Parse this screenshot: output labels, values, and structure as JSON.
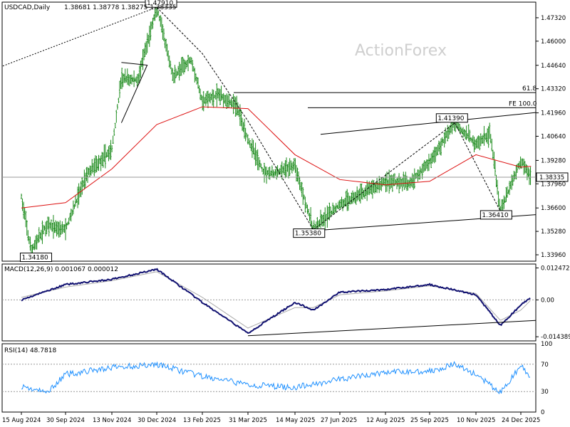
{
  "header": {
    "title": "USDCAD,Daily",
    "ohlc": "1.38681 1.38778 1.38275 1.38335"
  },
  "watermark": "ActionForex",
  "colors": {
    "price_bars": "#1a8a1a",
    "ma": "#dd1111",
    "macd_line": "#101070",
    "signal_line": "#aaaaaa",
    "rsi": "#1e90ff",
    "trendlines": "#000000",
    "dotted_levels": "#999999"
  },
  "chart_data": [
    {
      "type": "bar",
      "title": "USDCAD,Daily",
      "subtitle": "1.38681 1.38778 1.38275 1.38335",
      "x_ticks": [
        "15 Aug 2024",
        "30 Sep 2024",
        "13 Nov 2024",
        "30 Dec 2024",
        "13 Feb 2025",
        "31 Mar 2025",
        "14 May 2025",
        "27 Jun 2025",
        "12 Aug 2025",
        "25 Sep 2025",
        "10 Nov 2025",
        "24 Dec 2025"
      ],
      "y_ticks": [
        "1.47320",
        "1.46000",
        "1.44640",
        "1.43320",
        "1.41960",
        "1.40640",
        "1.39280",
        "1.37960",
        "1.36600",
        "1.35280",
        "1.33960"
      ],
      "ylim": [
        1.336,
        1.482
      ],
      "last_price": 1.38335,
      "last_price_label": "1.38335",
      "series": [
        {
          "kind": "price_path",
          "dates": [
            "15 Aug 2024",
            "25 Aug 2024",
            "10 Sep 2024",
            "30 Sep 2024",
            "20 Oct 2024",
            "13 Nov 2024",
            "23 Nov 2024",
            "10 Dec 2024",
            "30 Dec 2024",
            "15 Jan 2025",
            "2 Feb 2025",
            "13 Feb 2025",
            "2 Mar 2025",
            "20 Mar 2025",
            "31 Mar 2025",
            "14 Apr 2025",
            "24 Apr 2025",
            "14 May 2025",
            "1 Jun 2025",
            "27 Jun 2025",
            "12 Aug 2025",
            "5 Sep 2025",
            "25 Sep 2025",
            "20 Oct 2025",
            "10 Nov 2025",
            "24 Nov 2025",
            "4 Dec 2025",
            "24 Dec 2025",
            "3 Jan 2026"
          ],
          "values": [
            1.372,
            1.3418,
            1.356,
            1.354,
            1.385,
            1.399,
            1.439,
            1.438,
            1.4791,
            1.44,
            1.45,
            1.426,
            1.43,
            1.423,
            1.405,
            1.387,
            1.385,
            1.39,
            1.3538,
            1.368,
            1.381,
            1.38,
            1.392,
            1.4139,
            1.402,
            1.408,
            1.3641,
            1.393,
            1.38335
          ]
        },
        {
          "kind": "moving_average",
          "dates": [
            "15 Aug 2024",
            "30 Sep 2024",
            "13 Nov 2024",
            "30 Dec 2024",
            "13 Feb 2025",
            "31 Mar 2025",
            "14 May 2025",
            "27 Jun 2025",
            "12 Aug 2025",
            "25 Sep 2025",
            "10 Nov 2025",
            "24 Dec 2025",
            "3 Jan 2026"
          ],
          "values": [
            1.366,
            1.369,
            1.388,
            1.413,
            1.423,
            1.422,
            1.396,
            1.382,
            1.379,
            1.381,
            1.396,
            1.389,
            1.3895
          ]
        }
      ],
      "annotations": [
        {
          "label": "1.47910",
          "date": "30 Dec 2024",
          "value": 1.4791
        },
        {
          "label": "1.34180",
          "date": "25 Aug 2024",
          "value": 1.3418
        },
        {
          "label": "1.35380",
          "date": "1 Jun 2025",
          "value": 1.3538
        },
        {
          "label": "1.41390",
          "date": "20 Oct 2025",
          "value": 1.4139
        },
        {
          "label": "1.36410",
          "date": "4 Dec 2025",
          "value": 1.3641
        },
        {
          "label": "61.8",
          "value": 1.431
        },
        {
          "label": "FE 100.0",
          "value": 1.4225
        }
      ]
    },
    {
      "type": "line",
      "title": "MACD(12,26,9) 0.001067 0.000012",
      "y_ticks": [
        "0.012472",
        "0.00",
        "-0.014389"
      ],
      "ylim": [
        -0.016,
        0.014
      ],
      "series": [
        {
          "kind": "macd",
          "dates": [
            "15 Aug 2024",
            "30 Sep 2024",
            "13 Nov 2024",
            "30 Dec 2024",
            "13 Feb 2025",
            "31 Mar 2025",
            "14 May 2025",
            "1 Jun 2025",
            "27 Jun 2025",
            "12 Aug 2025",
            "25 Sep 2025",
            "10 Nov 2025",
            "4 Dec 2025",
            "24 Dec 2025",
            "3 Jan 2026"
          ],
          "values": [
            0.0,
            0.006,
            0.008,
            0.012,
            -0.001,
            -0.013,
            -0.001,
            -0.004,
            0.003,
            0.004,
            0.006,
            0.002,
            -0.01,
            -0.002,
            0.001
          ]
        },
        {
          "kind": "signal",
          "dates": [
            "15 Aug 2024",
            "30 Sep 2024",
            "13 Nov 2024",
            "30 Dec 2024",
            "13 Feb 2025",
            "31 Mar 2025",
            "14 May 2025",
            "1 Jun 2025",
            "27 Jun 2025",
            "12 Aug 2025",
            "25 Sep 2025",
            "10 Nov 2025",
            "4 Dec 2025",
            "24 Dec 2025",
            "3 Jan 2026"
          ],
          "values": [
            0.001,
            0.005,
            0.0075,
            0.011,
            0.001,
            -0.011,
            -0.003,
            -0.003,
            0.002,
            0.0035,
            0.0055,
            0.0025,
            -0.008,
            -0.004,
            0.0
          ]
        }
      ]
    },
    {
      "type": "line",
      "title": "RSI(14) 48.7818",
      "y_ticks": [
        "100",
        "70",
        "30",
        "0"
      ],
      "ylim": [
        0,
        100
      ],
      "series": [
        {
          "kind": "rsi",
          "dates": [
            "15 Aug 2024",
            "10 Sep 2024",
            "30 Sep 2024",
            "13 Nov 2024",
            "30 Dec 2024",
            "13 Feb 2025",
            "31 Mar 2025",
            "14 May 2025",
            "27 Jun 2025",
            "12 Aug 2025",
            "25 Sep 2025",
            "20 Oct 2025",
            "10 Nov 2025",
            "4 Dec 2025",
            "24 Dec 2025",
            "3 Jan 2026"
          ],
          "values": [
            38,
            28,
            55,
            65,
            70,
            52,
            40,
            36,
            48,
            58,
            60,
            70,
            55,
            28,
            68,
            48.78
          ]
        }
      ]
    }
  ]
}
